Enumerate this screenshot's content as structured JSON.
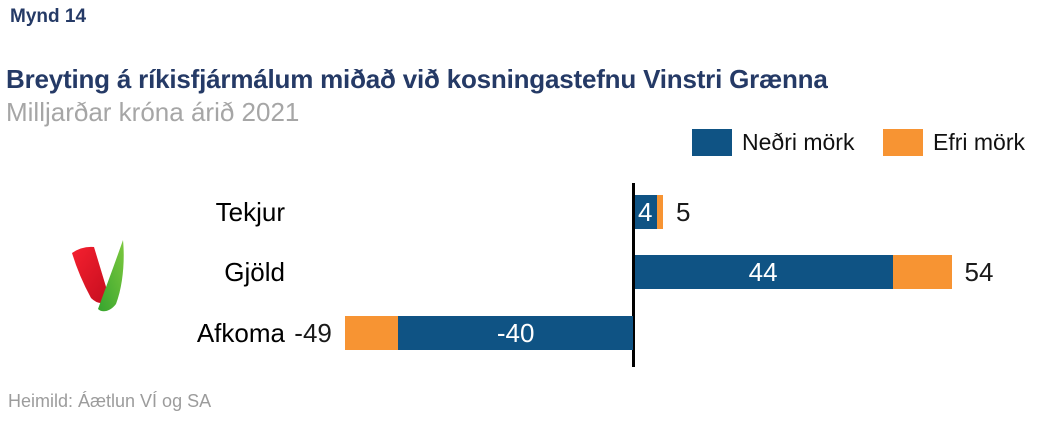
{
  "page": {
    "figure_label": "Mynd 14",
    "title": "Breyting á ríkisfjármálum miðað við kosningastefnu Vinstri Grænna",
    "subtitle": "Milljarðar króna árið 2021",
    "source": "Heimild: Áætlun VÍ og SA"
  },
  "colors": {
    "title_navy": "#253A66",
    "subtitle_gray": "#A6A6A6",
    "source_gray": "#9C9C9C",
    "bar_blue": "#0F5384",
    "bar_orange": "#F79433",
    "axis_black": "#000000",
    "logo_red": "#E01A2B",
    "logo_green": "#4CB530"
  },
  "legend": [
    {
      "label": "Neðri mörk",
      "color": "#0F5384"
    },
    {
      "label": "Efri mörk",
      "color": "#F79433"
    }
  ],
  "logo": {
    "name": "vinstri-graen-v-logo"
  },
  "chart_data": {
    "type": "bar",
    "orientation": "horizontal",
    "title": "Breyting á ríkisfjármálum miðað við kosningastefnu Vinstri Grænna",
    "subtitle": "Milljarðar króna árið 2021",
    "categories": [
      "Tekjur",
      "Gjöld",
      "Afkoma"
    ],
    "series": [
      {
        "name": "Neðri mörk",
        "values": [
          4,
          44,
          -40
        ]
      },
      {
        "name": "Efri mörk",
        "values": [
          5,
          54,
          -49
        ]
      }
    ],
    "xlim": [
      -49,
      54
    ],
    "grid": false,
    "legend_position": "top-right",
    "value_labels": "Neðri mörk labeled in white inside blue bar; Efri mörk labeled in black outside bar end",
    "baseline": 0
  }
}
